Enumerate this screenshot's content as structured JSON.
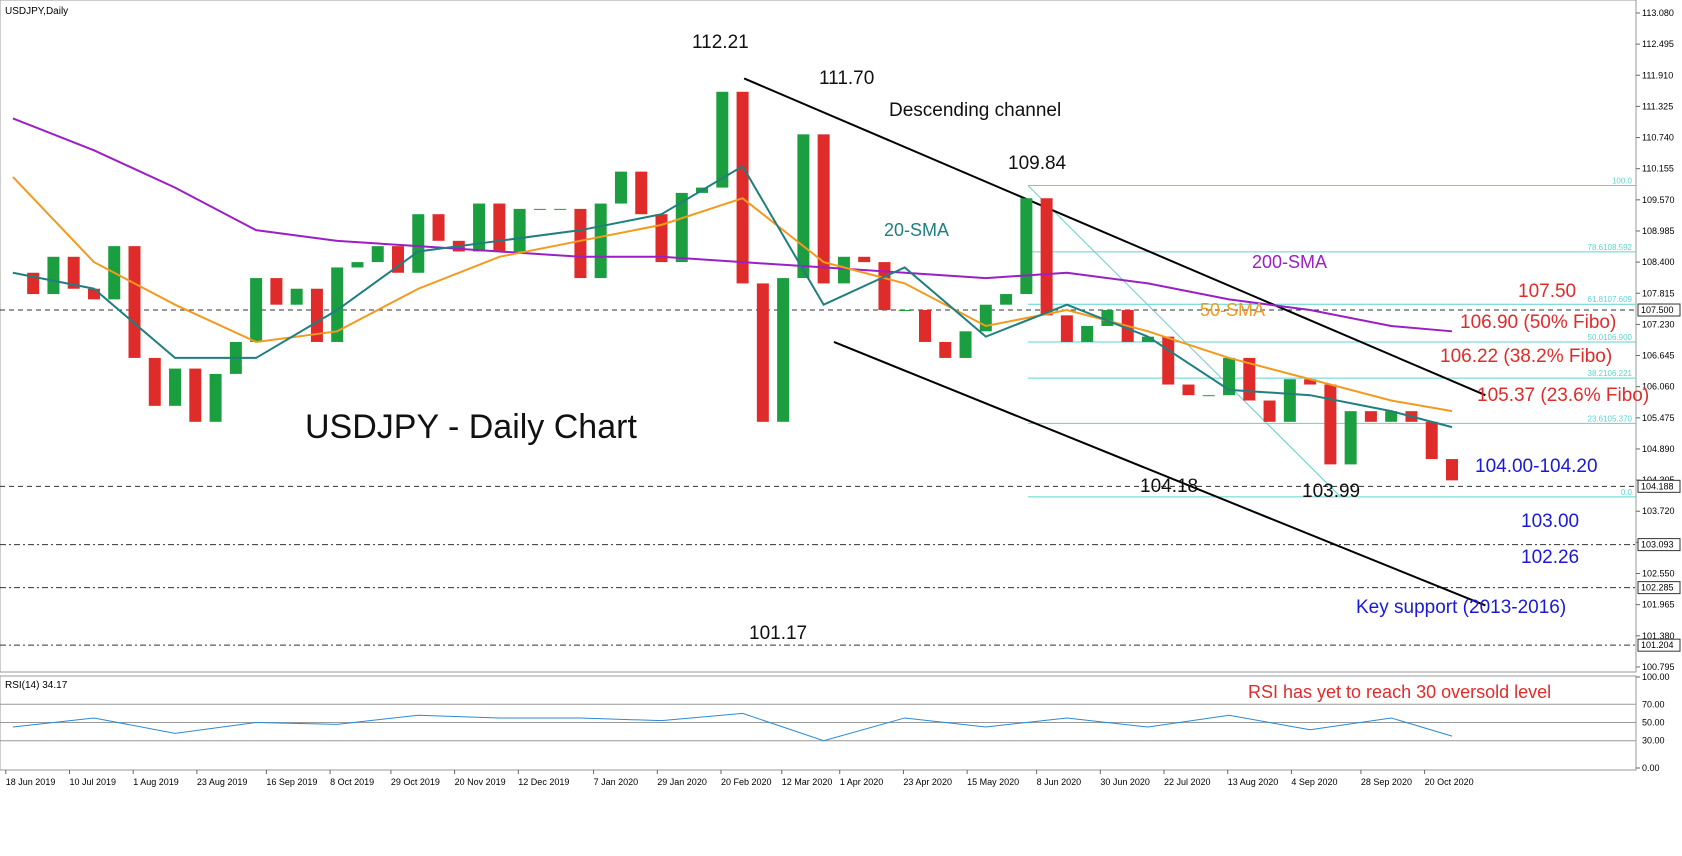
{
  "chart_data": {
    "type": "candlestick",
    "title": "USDJPY,Daily",
    "up_color": "#1a9e3f",
    "down_color": "#e02b2b",
    "x": [
      "2019-06-17",
      "2019-06-24",
      "2019-07-01",
      "2019-07-08",
      "2019-07-15",
      "2019-07-22",
      "2019-07-29",
      "2019-08-05",
      "2019-08-12",
      "2019-08-19",
      "2019-08-26",
      "2019-09-02",
      "2019-09-09",
      "2019-09-16",
      "2019-09-23",
      "2019-09-30",
      "2019-10-07",
      "2019-10-14",
      "2019-10-21",
      "2019-10-28",
      "2019-11-04",
      "2019-11-11",
      "2019-11-18",
      "2019-11-25",
      "2019-12-02",
      "2019-12-09",
      "2019-12-16",
      "2019-12-23",
      "2019-12-30",
      "2020-01-06",
      "2020-01-13",
      "2020-01-20",
      "2020-01-27",
      "2020-02-03",
      "2020-02-10",
      "2020-02-17",
      "2020-02-24",
      "2020-03-02",
      "2020-03-09",
      "2020-03-16",
      "2020-03-23",
      "2020-03-30",
      "2020-04-06",
      "2020-04-13",
      "2020-04-20",
      "2020-04-27",
      "2020-05-04",
      "2020-05-11",
      "2020-05-18",
      "2020-05-25",
      "2020-06-01",
      "2020-06-08",
      "2020-06-15",
      "2020-06-22",
      "2020-06-29",
      "2020-07-06",
      "2020-07-13",
      "2020-07-20",
      "2020-07-27",
      "2020-08-03",
      "2020-08-10",
      "2020-08-17",
      "2020-08-24",
      "2020-08-31",
      "2020-09-07",
      "2020-09-14",
      "2020-09-21",
      "2020-09-28",
      "2020-10-05",
      "2020-10-12",
      "2020-10-19",
      "2020-10-26"
    ],
    "values": [
      108.2,
      107.8,
      108.5,
      107.9,
      107.7,
      108.7,
      106.6,
      105.7,
      106.4,
      105.4,
      106.3,
      106.9,
      108.1,
      107.6,
      107.9,
      106.9,
      108.3,
      108.4,
      108.7,
      108.2,
      109.3,
      108.8,
      108.6,
      109.5,
      108.6,
      109.4,
      109.4,
      109.4,
      108.1,
      109.5,
      110.1,
      109.3,
      108.4,
      109.7,
      109.8,
      111.6,
      108.0,
      105.4,
      108.1,
      110.8,
      108.0,
      108.5,
      108.4,
      107.5,
      107.5,
      106.9,
      106.6,
      107.1,
      107.6,
      107.8,
      109.6,
      107.4,
      106.9,
      107.2,
      107.5,
      106.9,
      107.0,
      106.1,
      105.9,
      105.9,
      106.6,
      105.8,
      105.4,
      106.2,
      106.1,
      104.6,
      105.6,
      105.4,
      105.6,
      105.4,
      104.7,
      104.3
    ],
    "xlim": [
      "2019-06-16",
      "2021-01-01"
    ],
    "xticks": [
      {
        "value": "2019-06-18",
        "label": "18 Jun 2019"
      },
      {
        "value": "2019-07-10",
        "label": "10 Jul 2019"
      },
      {
        "value": "2019-08-01",
        "label": "1 Aug 2019"
      },
      {
        "value": "2019-08-23",
        "label": "23 Aug 2019"
      },
      {
        "value": "2019-09-16",
        "label": "16 Sep 2019"
      },
      {
        "value": "2019-10-08",
        "label": "8 Oct 2019"
      },
      {
        "value": "2019-10-29",
        "label": "29 Oct 2019"
      },
      {
        "value": "2019-11-20",
        "label": "20 Nov 2019"
      },
      {
        "value": "2019-12-12",
        "label": "12 Dec 2019"
      },
      {
        "value": "2020-01-07",
        "label": "7 Jan 2020"
      },
      {
        "value": "2020-01-29",
        "label": "29 Jan 2020"
      },
      {
        "value": "2020-02-20",
        "label": "20 Feb 2020"
      },
      {
        "value": "2020-03-12",
        "label": "12 Mar 2020"
      },
      {
        "value": "2020-04-01",
        "label": "1 Apr 2020"
      },
      {
        "value": "2020-04-23",
        "label": "23 Apr 2020"
      },
      {
        "value": "2020-05-15",
        "label": "15 May 2020"
      },
      {
        "value": "2020-06-08",
        "label": "8 Jun 2020"
      },
      {
        "value": "2020-06-30",
        "label": "30 Jun 2020"
      },
      {
        "value": "2020-07-22",
        "label": "22 Jul 2020"
      },
      {
        "value": "2020-08-13",
        "label": "13 Aug 2020"
      },
      {
        "value": "2020-09-04",
        "label": "4 Sep 2020"
      },
      {
        "value": "2020-09-28",
        "label": "28 Sep 2020"
      },
      {
        "value": "2020-10-20",
        "label": "20 Oct 2020"
      }
    ],
    "ylim": [
      100.7,
      113.23
    ],
    "yticks": [
      {
        "value": 113.08,
        "label": "113.080"
      },
      {
        "value": 112.495,
        "label": "112.495"
      },
      {
        "value": 111.91,
        "label": "111.910"
      },
      {
        "value": 111.325,
        "label": "111.325"
      },
      {
        "value": 110.74,
        "label": "110.740"
      },
      {
        "value": 110.155,
        "label": "110.155"
      },
      {
        "value": 109.57,
        "label": "109.570"
      },
      {
        "value": 108.985,
        "label": "108.985"
      },
      {
        "value": 108.4,
        "label": "108.400"
      },
      {
        "value": 107.815,
        "label": "107.815"
      },
      {
        "value": 107.23,
        "label": "107.230"
      },
      {
        "value": 106.645,
        "label": "106.645"
      },
      {
        "value": 106.06,
        "label": "106.060"
      },
      {
        "value": 105.475,
        "label": "105.475"
      },
      {
        "value": 104.89,
        "label": "104.890"
      },
      {
        "value": 104.305,
        "label": "104.305"
      },
      {
        "value": 103.72,
        "label": "103.720"
      },
      {
        "value": 103.135,
        "label": "103.135"
      },
      {
        "value": 102.55,
        "label": "102.550"
      },
      {
        "value": 101.965,
        "label": "101.965"
      },
      {
        "value": 101.38,
        "label": "101.380"
      },
      {
        "value": 100.795,
        "label": "100.795"
      }
    ],
    "series": [
      {
        "name": "200-SMA",
        "color": "#9b1fc4",
        "x": [
          "2019-06-17",
          "2019-07-15",
          "2019-08-12",
          "2019-09-09",
          "2019-10-07",
          "2019-11-04",
          "2019-12-02",
          "2019-12-30",
          "2020-01-27",
          "2020-02-24",
          "2020-03-23",
          "2020-04-20",
          "2020-05-18",
          "2020-06-15",
          "2020-07-13",
          "2020-08-10",
          "2020-09-07",
          "2020-10-05",
          "2020-10-26"
        ],
        "values": [
          111.1,
          110.5,
          109.8,
          109.0,
          108.8,
          108.7,
          108.6,
          108.5,
          108.5,
          108.4,
          108.3,
          108.2,
          108.1,
          108.2,
          108.0,
          107.7,
          107.5,
          107.2,
          107.1
        ]
      },
      {
        "name": "50-SMA",
        "color": "#f39a1e",
        "x": [
          "2019-06-17",
          "2019-07-15",
          "2019-08-12",
          "2019-09-09",
          "2019-10-07",
          "2019-11-04",
          "2019-12-02",
          "2019-12-30",
          "2020-01-27",
          "2020-02-24",
          "2020-03-23",
          "2020-04-20",
          "2020-05-18",
          "2020-06-15",
          "2020-07-13",
          "2020-08-10",
          "2020-09-07",
          "2020-10-05",
          "2020-10-26"
        ],
        "values": [
          110.0,
          108.4,
          107.6,
          106.9,
          107.1,
          107.9,
          108.5,
          108.8,
          109.1,
          109.6,
          108.4,
          108.0,
          107.2,
          107.5,
          107.1,
          106.6,
          106.2,
          105.8,
          105.6
        ]
      },
      {
        "name": "20-SMA",
        "color": "#1f7f80",
        "x": [
          "2019-06-17",
          "2019-07-15",
          "2019-08-12",
          "2019-09-09",
          "2019-10-07",
          "2019-11-04",
          "2019-12-02",
          "2019-12-30",
          "2020-01-27",
          "2020-02-24",
          "2020-03-23",
          "2020-04-20",
          "2020-05-18",
          "2020-06-15",
          "2020-07-13",
          "2020-08-10",
          "2020-09-07",
          "2020-10-05",
          "2020-10-26"
        ],
        "values": [
          108.2,
          107.9,
          106.6,
          106.6,
          107.5,
          108.6,
          108.8,
          109.0,
          109.3,
          110.2,
          107.6,
          108.3,
          107.0,
          107.6,
          107.0,
          106.0,
          105.9,
          105.6,
          105.3
        ]
      }
    ],
    "levels": [
      {
        "value": 107.5,
        "label": "107.500"
      },
      {
        "value": 104.188,
        "label": "104.188"
      },
      {
        "value": 103.093,
        "label": "103.093"
      },
      {
        "value": 102.285,
        "label": "102.285"
      },
      {
        "value": 101.204,
        "label": "101.204"
      }
    ],
    "fibo": [
      {
        "value": 109.84,
        "label": "100.0"
      },
      {
        "value": 108.592,
        "label": "78.6108.592"
      },
      {
        "value": 107.609,
        "label": "61.8107.609"
      },
      {
        "value": 106.9,
        "label": "50.0106.900"
      },
      {
        "value": 106.221,
        "label": "38.2106.221"
      },
      {
        "value": 105.37,
        "label": "23.6105.370"
      },
      {
        "value": 103.99,
        "label": "0.0"
      }
    ],
    "fibo_color": "#5fd3cf",
    "fibo_diagonal": {
      "x": [
        "2020-06-05",
        "2020-09-21"
      ],
      "values": [
        109.84,
        103.99
      ]
    },
    "channel": [
      {
        "x": [
          "2020-02-28",
          "2020-11-10"
        ],
        "values": [
          111.85,
          105.9
        ]
      },
      {
        "x": [
          "2020-03-30",
          "2020-11-10"
        ],
        "values": [
          106.9,
          101.95
        ]
      }
    ],
    "annotations": [
      {
        "text": "112.21",
        "color": "#111"
      },
      {
        "text": "111.70",
        "color": "#111"
      },
      {
        "text": "Descending channel",
        "color": "#111"
      },
      {
        "text": "109.84",
        "color": "#111"
      },
      {
        "text": "107.50",
        "color": "#e02b2b"
      },
      {
        "text": "106.90 (50% Fibo)",
        "color": "#e02b2b"
      },
      {
        "text": "106.22 (38.2% Fibo)",
        "color": "#e02b2b"
      },
      {
        "text": "105.37 (23.6% Fibo)",
        "color": "#e02b2b"
      },
      {
        "text": "104.00-104.20",
        "color": "#1a1ad6"
      },
      {
        "text": "103.00",
        "color": "#1a1ad6"
      },
      {
        "text": "102.26",
        "color": "#1a1ad6"
      },
      {
        "text": "Key support (2013-2016)",
        "color": "#1a1ad6"
      },
      {
        "text": "104.18",
        "color": "#111"
      },
      {
        "text": "103.99",
        "color": "#111"
      },
      {
        "text": "101.17",
        "color": "#111"
      },
      {
        "text": "USDJPY - Daily Chart",
        "color": "#111"
      }
    ],
    "rsi": {
      "title": "RSI(14) 34.17",
      "note": "RSI has yet to reach 30 oversold level",
      "note_color": "#e02b2b",
      "color": "#2a8ad4",
      "x": [
        "2019-06-17",
        "2019-07-15",
        "2019-08-12",
        "2019-09-09",
        "2019-10-07",
        "2019-11-04",
        "2019-12-02",
        "2019-12-30",
        "2020-01-27",
        "2020-02-24",
        "2020-03-23",
        "2020-04-20",
        "2020-05-18",
        "2020-06-15",
        "2020-07-13",
        "2020-08-10",
        "2020-09-07",
        "2020-10-05",
        "2020-10-26"
      ],
      "values": [
        45,
        55,
        38,
        50,
        48,
        58,
        55,
        55,
        52,
        60,
        30,
        55,
        45,
        55,
        45,
        58,
        42,
        55,
        35
      ],
      "ylim": [
        0,
        100
      ],
      "yticks": [
        {
          "value": 100,
          "label": "100.00"
        },
        {
          "value": 70,
          "label": "70.00"
        },
        {
          "value": 50,
          "label": "50.00"
        },
        {
          "value": 30,
          "label": "30.00"
        },
        {
          "value": 0,
          "label": "0.00"
        }
      ]
    }
  }
}
